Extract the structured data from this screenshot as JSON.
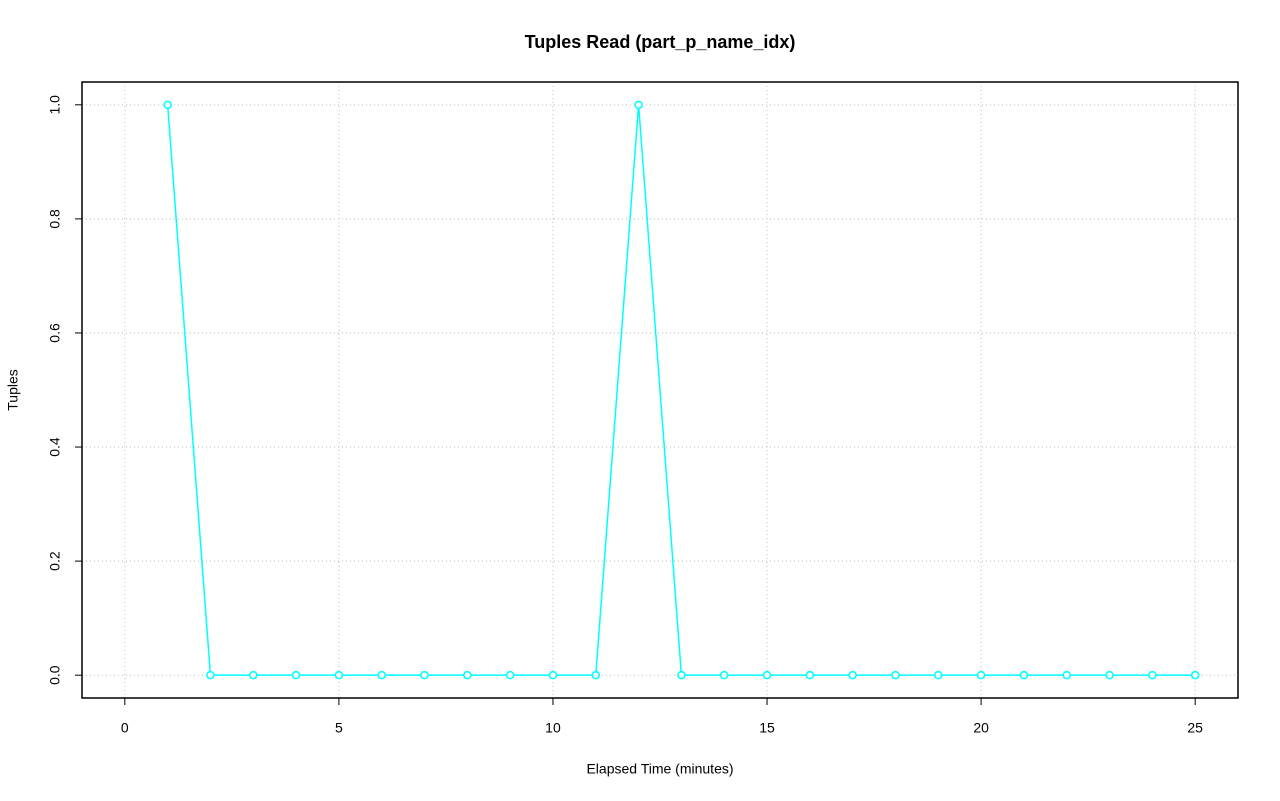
{
  "chart_data": {
    "type": "line",
    "title": "Tuples Read (part_p_name_idx)",
    "x_label": "Elapsed Time (minutes)",
    "y_label": "Tuples",
    "x": [
      1,
      2,
      3,
      4,
      5,
      6,
      7,
      8,
      9,
      10,
      11,
      12,
      13,
      14,
      15,
      16,
      17,
      18,
      19,
      20,
      21,
      22,
      23,
      24,
      25
    ],
    "series": [
      {
        "color": "#00ffff",
        "values": [
          1,
          0,
          0,
          0,
          0,
          0,
          0,
          0,
          0,
          0,
          0,
          1,
          0,
          0,
          0,
          0,
          0,
          0,
          0,
          0,
          0,
          0,
          0,
          0,
          0
        ]
      }
    ],
    "xlim": [
      -1,
      26
    ],
    "xticks": [
      0,
      5,
      10,
      15,
      20,
      25
    ],
    "ylim": [
      -0.04,
      1.04
    ],
    "yticks": [
      {
        "value": 0,
        "label": "0.0"
      },
      {
        "value": 0.2,
        "label": "0.2"
      },
      {
        "value": 0.4,
        "label": "0.4"
      },
      {
        "value": 0.6,
        "label": "0.6"
      },
      {
        "value": 0.8,
        "label": "0.8"
      },
      {
        "value": 1,
        "label": "1.0"
      }
    ],
    "grid": true
  }
}
